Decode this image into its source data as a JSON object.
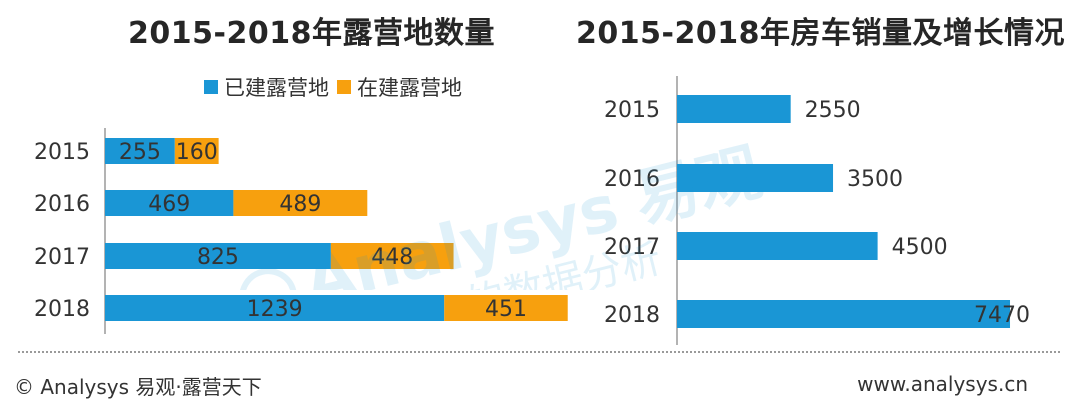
{
  "titles": {
    "left": "2015-2018年露营地数量",
    "right": "2015-2018年房车销量及增长情况"
  },
  "colors": {
    "built": "#1a96d5",
    "under_construction": "#f7a00e",
    "axis": "#9a9a9a",
    "text": "#333333"
  },
  "chart_data": [
    {
      "type": "bar",
      "orientation": "horizontal",
      "stacked": true,
      "title": "2015-2018年露营地数量",
      "categories": [
        "2015",
        "2016",
        "2017",
        "2018"
      ],
      "series": [
        {
          "name": "已建露营地",
          "values": [
            255,
            469,
            825,
            1239
          ]
        },
        {
          "name": "在建露营地",
          "values": [
            160,
            489,
            448,
            451
          ]
        }
      ],
      "legend": "top",
      "grid": false
    },
    {
      "type": "bar",
      "orientation": "horizontal",
      "title": "2015-2018年房车销量及增长情况",
      "categories": [
        "2015",
        "2016",
        "2017",
        "2018"
      ],
      "values": [
        2550,
        3500,
        4500,
        7470
      ],
      "grid": false
    }
  ],
  "watermark": {
    "brand": "Analysys 易观",
    "slogan": "懂你的数据分析"
  },
  "footer": {
    "left": "© Analysys 易观·露营天下",
    "right": "www.analysys.cn"
  }
}
